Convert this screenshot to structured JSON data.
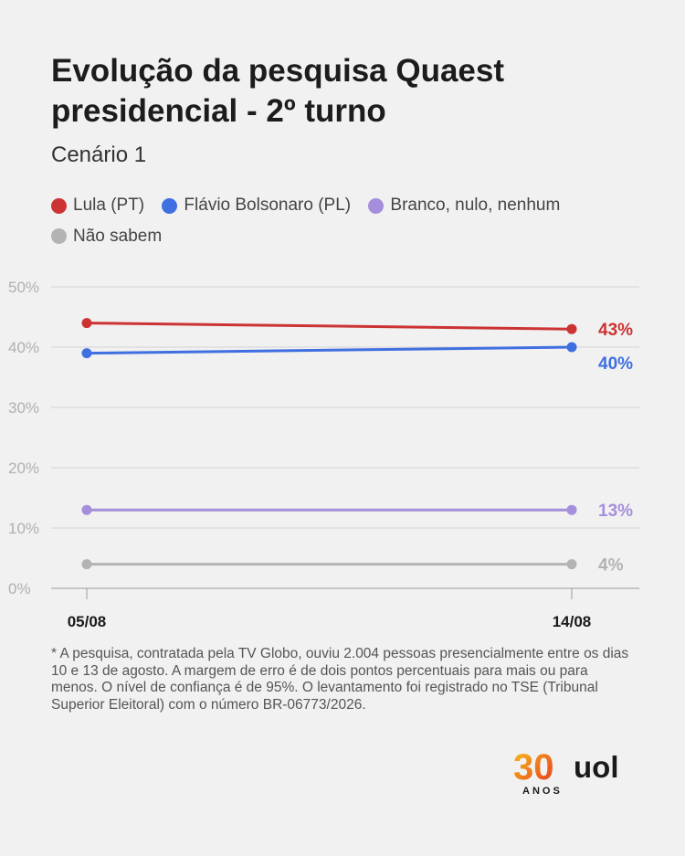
{
  "title_lines": [
    "Evolução da pesquisa Quaest",
    "presidencial - 2º turno"
  ],
  "subtitle": "Cenário 1",
  "footnote": "* A pesquisa, contratada pela TV Globo, ouviu 2.004 pessoas presencialmente entre os dias 10 e 13 de agosto. A margem de erro é de dois pontos percentuais para mais ou para menos. O nível de confiança é de 95%. O levantamento foi registrado no TSE (Tribunal Superior Eleitoral) com o número BR-06773/2026.",
  "logo": {
    "text_30": "30",
    "text_anos": "ANOS",
    "text_uol": "uol"
  },
  "chart_data": {
    "type": "line",
    "title": "Evolução da pesquisa Quaest presidencial - 2º turno",
    "subtitle": "Cenário 1",
    "x": [
      "05/08",
      "14/08"
    ],
    "ylim": [
      0,
      50
    ],
    "yticks": [
      0,
      10,
      20,
      30,
      40,
      50
    ],
    "ytick_labels": [
      "0%",
      "10%",
      "20%",
      "30%",
      "40%",
      "50%"
    ],
    "grid": true,
    "legend": "top",
    "series": [
      {
        "name": "Lula (PT)",
        "values": [
          44,
          43
        ],
        "color": "#cc3333",
        "end_label": "43%"
      },
      {
        "name": "Flávio Bolsonaro (PL)",
        "values": [
          39,
          40
        ],
        "color": "#3f6fe0",
        "end_label": "40%"
      },
      {
        "name": "Branco, nulo, nenhum",
        "values": [
          13,
          13
        ],
        "color": "#a58fdc",
        "end_label": "13%"
      },
      {
        "name": "Não sabem",
        "values": [
          4,
          4
        ],
        "color": "#b3b3b3",
        "end_label": "4%"
      }
    ]
  }
}
